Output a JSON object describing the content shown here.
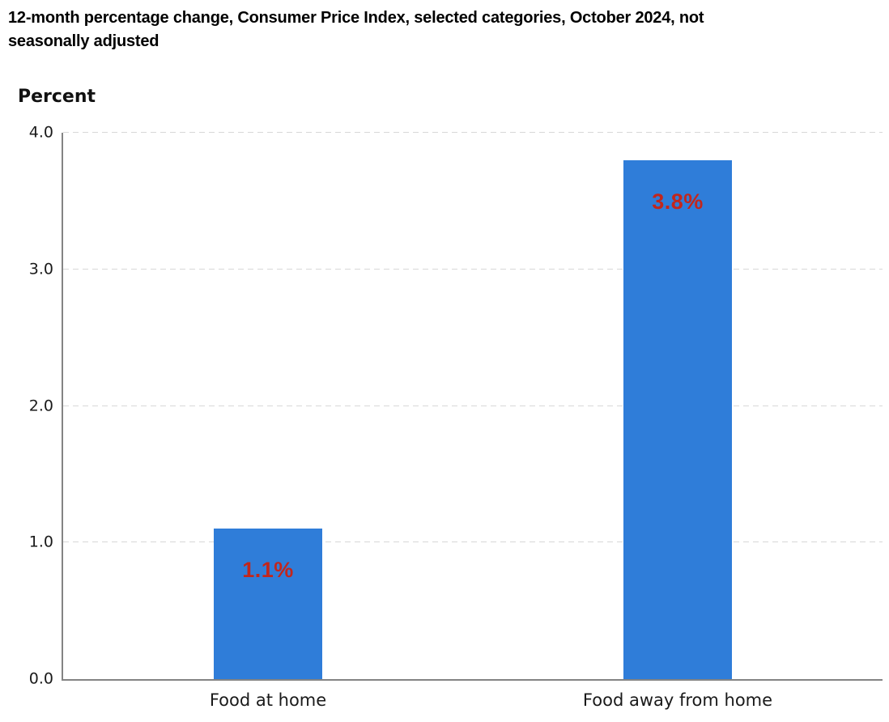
{
  "title": "12-month percentage change, Consumer Price Index, selected categories, October 2024, not\nseasonally adjusted",
  "y_axis_title": "Percent",
  "chart_data": {
    "type": "bar",
    "title": "12-month percentage change, Consumer Price Index, selected categories, October 2024, not seasonally adjusted",
    "xlabel": "",
    "ylabel": "Percent",
    "categories": [
      "Food at home",
      "Food away from home"
    ],
    "values": [
      1.1,
      3.8
    ],
    "value_labels": [
      "1.1%",
      "3.8%"
    ],
    "ylim": [
      0,
      4.0
    ],
    "yticks": [
      {
        "value": 0.0,
        "label": "0.0"
      },
      {
        "value": 1.0,
        "label": "1.0"
      },
      {
        "value": 2.0,
        "label": "2.0"
      },
      {
        "value": 3.0,
        "label": "3.0"
      },
      {
        "value": 4.0,
        "label": "4.0"
      }
    ],
    "grid": "horizontal-dashed",
    "legend": "none",
    "colors": {
      "bar": "#2F7DD9",
      "value_label": "#C2261C",
      "gridline": "#D8D8D8",
      "axis_line": "#848484",
      "tick_text": "#1A1A1A",
      "title_text": "#000000"
    }
  }
}
